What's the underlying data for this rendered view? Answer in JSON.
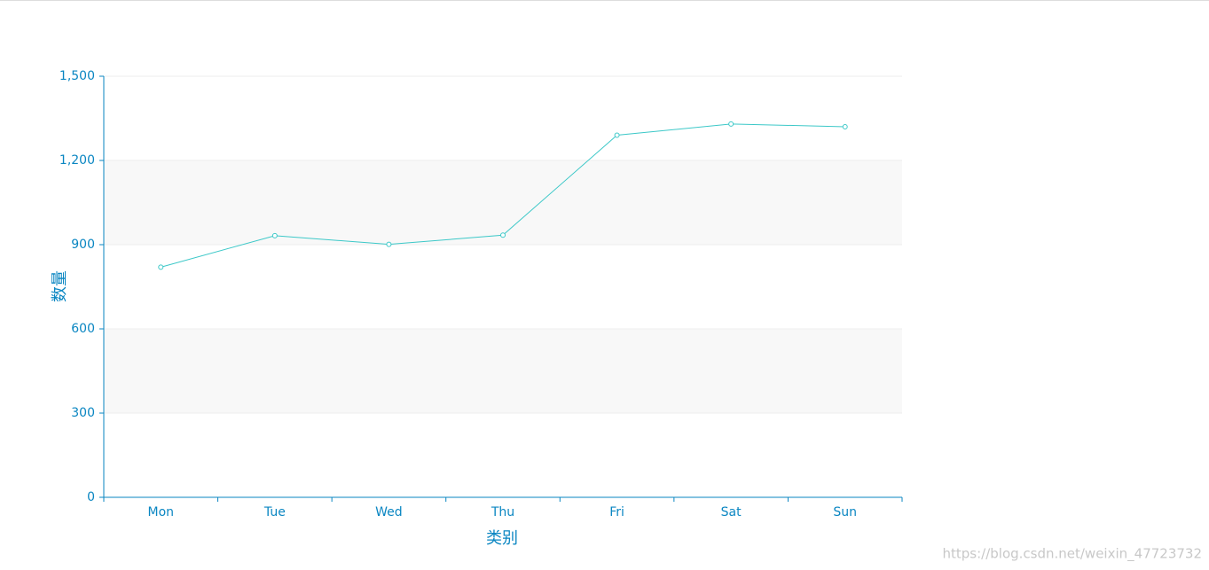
{
  "chart_data": {
    "type": "line",
    "x_axis_label": "类别",
    "y_axis_label": "数量",
    "categories": [
      "Mon",
      "Tue",
      "Wed",
      "Thu",
      "Fri",
      "Sat",
      "Sun"
    ],
    "series": [
      {
        "name": null,
        "color": "#3cc8c8",
        "values": [
          820,
          932,
          901,
          934,
          1290,
          1330,
          1320
        ]
      }
    ],
    "ylim": [
      0,
      1500
    ],
    "yticks": [
      0,
      300,
      600,
      900,
      {
        "value": 1200,
        "label": "1,200"
      },
      {
        "value": 1500,
        "label": "1,500"
      }
    ],
    "grid": true,
    "split_area": true,
    "axis_color": "#0a86c2",
    "watermark": "https://blog.csdn.net/weixin_47723732"
  }
}
